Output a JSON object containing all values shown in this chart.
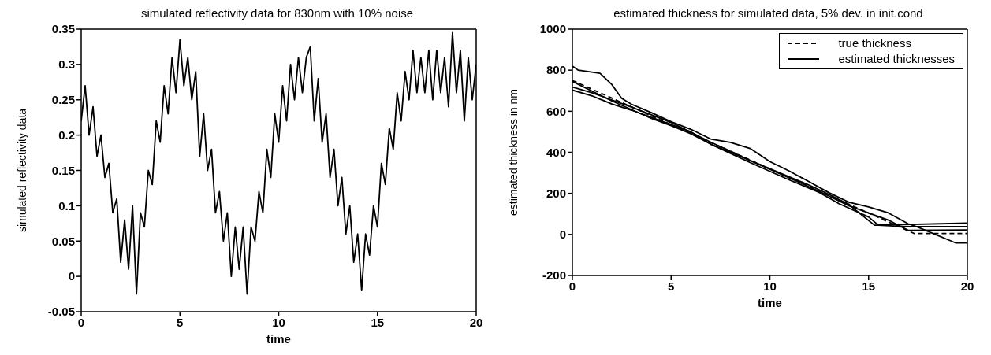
{
  "chart_data": [
    {
      "type": "line",
      "title": "simulated reflectivity data for 830nm with 10% noise",
      "xlabel": "time",
      "ylabel": "simulated reflectivity data",
      "xlim": [
        0,
        20
      ],
      "xticks": [
        0,
        5,
        10,
        15,
        20
      ],
      "ylim": [
        -0.05,
        0.35
      ],
      "yticks": [
        -0.05,
        0,
        0.05,
        0.1,
        0.15,
        0.2,
        0.25,
        0.3,
        0.35
      ],
      "grid": false,
      "legend": false,
      "marker": "none",
      "line_style": "solid",
      "x": [
        0,
        0.2,
        0.4,
        0.6,
        0.8,
        1,
        1.2,
        1.4,
        1.6,
        1.8,
        2,
        2.2,
        2.4,
        2.6,
        2.8,
        3,
        3.2,
        3.4,
        3.6,
        3.8,
        4,
        4.2,
        4.4,
        4.6,
        4.8,
        5,
        5.2,
        5.4,
        5.6,
        5.8,
        6,
        6.2,
        6.4,
        6.6,
        6.8,
        7,
        7.2,
        7.4,
        7.6,
        7.8,
        8,
        8.2,
        8.4,
        8.6,
        8.8,
        9,
        9.2,
        9.4,
        9.6,
        9.8,
        10,
        10.2,
        10.4,
        10.6,
        10.8,
        11,
        11.2,
        11.4,
        11.6,
        11.8,
        12,
        12.2,
        12.4,
        12.6,
        12.8,
        13,
        13.2,
        13.4,
        13.6,
        13.8,
        14,
        14.2,
        14.4,
        14.6,
        14.8,
        15,
        15.2,
        15.4,
        15.6,
        15.8,
        16,
        16.2,
        16.4,
        16.6,
        16.8,
        17,
        17.2,
        17.4,
        17.6,
        17.8,
        18,
        18.2,
        18.4,
        18.6,
        18.8,
        19,
        19.2,
        19.4,
        19.6,
        19.8,
        20
      ],
      "series": [
        {
          "color": "#000000",
          "values": [
            0.22,
            0.27,
            0.2,
            0.24,
            0.17,
            0.2,
            0.14,
            0.16,
            0.09,
            0.11,
            0.02,
            0.08,
            0.01,
            0.1,
            -0.025,
            0.09,
            0.07,
            0.15,
            0.13,
            0.22,
            0.19,
            0.27,
            0.23,
            0.31,
            0.26,
            0.335,
            0.27,
            0.31,
            0.25,
            0.29,
            0.17,
            0.23,
            0.15,
            0.18,
            0.09,
            0.12,
            0.05,
            0.09,
            0,
            0.07,
            0.01,
            0.07,
            -0.025,
            0.07,
            0.05,
            0.12,
            0.09,
            0.18,
            0.14,
            0.23,
            0.19,
            0.27,
            0.22,
            0.3,
            0.25,
            0.31,
            0.26,
            0.31,
            0.325,
            0.22,
            0.28,
            0.19,
            0.23,
            0.14,
            0.18,
            0.1,
            0.14,
            0.06,
            0.1,
            0.02,
            0.06,
            -0.02,
            0.06,
            0.03,
            0.1,
            0.07,
            0.16,
            0.13,
            0.21,
            0.18,
            0.26,
            0.22,
            0.29,
            0.25,
            0.32,
            0.26,
            0.31,
            0.26,
            0.32,
            0.25,
            0.32,
            0.26,
            0.31,
            0.24,
            0.345,
            0.26,
            0.32,
            0.22,
            0.31,
            0.25,
            0.3
          ]
        }
      ]
    },
    {
      "type": "line",
      "title": "estimated thickness for simulated data, 5% dev. in init.cond",
      "xlabel": "time",
      "ylabel": "estimated thickness in nm",
      "xlim": [
        0,
        20
      ],
      "xticks": [
        0,
        5,
        10,
        15,
        20
      ],
      "ylim": [
        -200,
        1000
      ],
      "yticks": [
        -200,
        0,
        200,
        400,
        600,
        800,
        1000
      ],
      "grid": false,
      "legend": "top right",
      "marker": "none",
      "series": [
        {
          "name": "true thickness",
          "color": "#000000",
          "line_style": "dashed",
          "x": [
            0,
            17.3,
            20
          ],
          "values": [
            750,
            5,
            5
          ]
        },
        {
          "name": "estimated thicknesses",
          "color": "#000000",
          "line_style": "solid",
          "x": [
            0,
            0.3,
            1.4,
            2,
            2.5,
            3,
            4,
            5,
            6,
            7,
            8,
            9,
            10,
            11,
            12,
            13,
            14,
            15,
            16,
            17,
            17.5,
            19.4,
            20
          ],
          "values": [
            820,
            800,
            785,
            730,
            663,
            634,
            593,
            549,
            512,
            465,
            448,
            419,
            355,
            308,
            256,
            203,
            157,
            134,
            105,
            52,
            35,
            -41,
            -41
          ]
        },
        {
          "color": "#000000",
          "line_style": "solid",
          "x": [
            0,
            2,
            4,
            5,
            6,
            7,
            8,
            10,
            12,
            13,
            14,
            15.3,
            20
          ],
          "values": [
            745,
            650,
            565,
            530,
            490,
            440,
            400,
            320,
            240,
            195,
            145,
            45,
            55
          ]
        },
        {
          "color": "#000000",
          "line_style": "solid",
          "x": [
            0,
            1,
            3,
            5,
            7,
            9,
            11,
            12.5,
            14,
            16,
            17,
            20
          ],
          "values": [
            718,
            690,
            620,
            545,
            450,
            360,
            275,
            210,
            140,
            70,
            20,
            22
          ]
        },
        {
          "color": "#000000",
          "line_style": "solid",
          "x": [
            0,
            1,
            2,
            3,
            4,
            5,
            6,
            6.5,
            7,
            9,
            11,
            12.5,
            13.5,
            15,
            15.5,
            16.8,
            20
          ],
          "values": [
            703,
            675,
            635,
            605,
            570,
            535,
            500,
            470,
            440,
            350,
            265,
            205,
            150,
            85,
            45,
            38,
            38
          ]
        }
      ]
    }
  ]
}
